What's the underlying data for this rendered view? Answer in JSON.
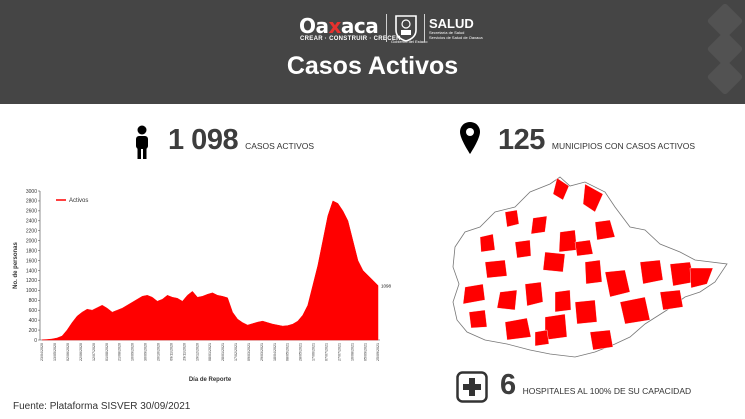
{
  "header": {
    "brand": "Oaxaca",
    "brand_prefix": "Oa",
    "brand_x": "x",
    "brand_suffix": "aca",
    "tagline": "CREAR · CONSTRUIR · CRECER",
    "seal_caption": "Gobierno del Estado",
    "ministry": "SALUD",
    "ministry_line1": "Secretaría de Salud",
    "ministry_line2": "Servicios de Salud de Oaxaca",
    "title": "Casos Activos"
  },
  "stats": {
    "active_cases": {
      "value": "1 098",
      "label": "CASOS ACTIVOS",
      "icon": "person-icon"
    },
    "municipalities": {
      "value": "125",
      "label": "MUNICIPIOS CON CASOS ACTIVOS",
      "icon": "map-pin-icon"
    },
    "hospitals": {
      "value": "6",
      "label": "HOSPITALES AL 100% DE SU CAPACIDAD",
      "icon": "hospital-cross-icon"
    }
  },
  "footer": {
    "source": "Fuente: Plataforma SISVER   30/09/2021"
  },
  "colors": {
    "header_bg": "#454545",
    "accent": "#ff0000",
    "text": "#3d3d3d"
  },
  "chart_data": {
    "type": "area",
    "xlabel": "Día de Reporte",
    "ylabel": "No. de personas",
    "ylim": [
      0,
      3000
    ],
    "yticks": [
      0,
      200,
      400,
      600,
      800,
      1000,
      1200,
      1400,
      1600,
      1800,
      2000,
      2200,
      2400,
      2600,
      2800,
      3000
    ],
    "xticks": [
      "23/04/2020",
      "13/05/2020",
      "02/06/2020",
      "22/06/2020",
      "12/07/2020",
      "01/08/2020",
      "21/08/2020",
      "10/09/2020",
      "30/09/2020",
      "20/10/2020",
      "09/11/2020",
      "29/11/2020",
      "19/12/2020",
      "08/01/2021",
      "28/01/2021",
      "17/02/2021",
      "09/03/2021",
      "29/03/2021",
      "18/04/2021",
      "08/05/2021",
      "28/05/2021",
      "17/06/2021",
      "07/07/2021",
      "27/07/2021",
      "16/08/2021",
      "05/09/2021",
      "25/09/2021"
    ],
    "series": [
      {
        "name": "Activos",
        "color": "#ff0000",
        "values": [
          5,
          10,
          20,
          40,
          80,
          200,
          350,
          480,
          560,
          620,
          600,
          650,
          700,
          640,
          560,
          600,
          640,
          700,
          760,
          820,
          880,
          900,
          860,
          780,
          820,
          900,
          860,
          840,
          780,
          900,
          980,
          860,
          880,
          920,
          950,
          900,
          880,
          850,
          560,
          420,
          350,
          300,
          330,
          360,
          380,
          350,
          320,
          300,
          280,
          290,
          320,
          380,
          500,
          700,
          1100,
          1500,
          2000,
          2500,
          2800,
          2750,
          2600,
          2400,
          2000,
          1600,
          1400,
          1300,
          1200,
          1098
        ],
        "last_label": "1098"
      }
    ],
    "legend": "top-left",
    "grid": false
  }
}
